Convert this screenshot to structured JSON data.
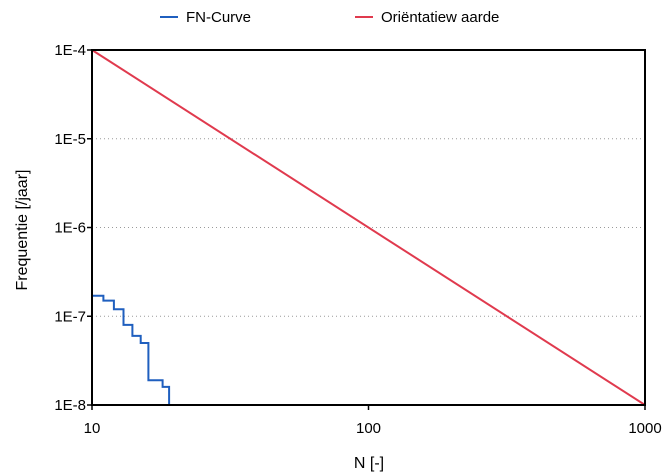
{
  "chart_data": {
    "type": "line",
    "xscale": "log",
    "yscale": "log",
    "xlim": [
      10,
      1000
    ],
    "ylim": [
      1e-08,
      0.0001
    ],
    "xlabel": "N [-]",
    "ylabel": "Frequentie [/jaar]",
    "x_ticks": [
      {
        "value": 10,
        "label": "10"
      },
      {
        "value": 100,
        "label": "100"
      },
      {
        "value": 1000,
        "label": "1000"
      }
    ],
    "y_ticks": [
      {
        "value": 0.0001,
        "label": "1E-4"
      },
      {
        "value": 1e-05,
        "label": "1E-5"
      },
      {
        "value": 1e-06,
        "label": "1E-6"
      },
      {
        "value": 1e-07,
        "label": "1E-7"
      },
      {
        "value": 1e-08,
        "label": "1E-8"
      }
    ],
    "grid": "horizontal dotted",
    "legend_position": "top",
    "series": [
      {
        "name": "FN-Curve",
        "color": "#1f5fbf",
        "style": "step",
        "points": [
          [
            10,
            1.7e-07
          ],
          [
            11,
            1.7e-07
          ],
          [
            11,
            1.5e-07
          ],
          [
            12,
            1.5e-07
          ],
          [
            12,
            1.2e-07
          ],
          [
            13,
            1.2e-07
          ],
          [
            13,
            8e-08
          ],
          [
            14,
            8e-08
          ],
          [
            14,
            6e-08
          ],
          [
            15,
            6e-08
          ],
          [
            15,
            5e-08
          ],
          [
            16,
            5e-08
          ],
          [
            16,
            1.9e-08
          ],
          [
            18,
            1.9e-08
          ],
          [
            18,
            1.6e-08
          ],
          [
            19,
            1.6e-08
          ],
          [
            19,
            1e-08
          ]
        ]
      },
      {
        "name": "Oriëntatiewaarde",
        "legend_label": "Oriëntatiew aarde",
        "color": "#e03a4e",
        "style": "line",
        "points": [
          [
            10,
            0.0001
          ],
          [
            1000,
            1e-08
          ]
        ]
      }
    ]
  }
}
